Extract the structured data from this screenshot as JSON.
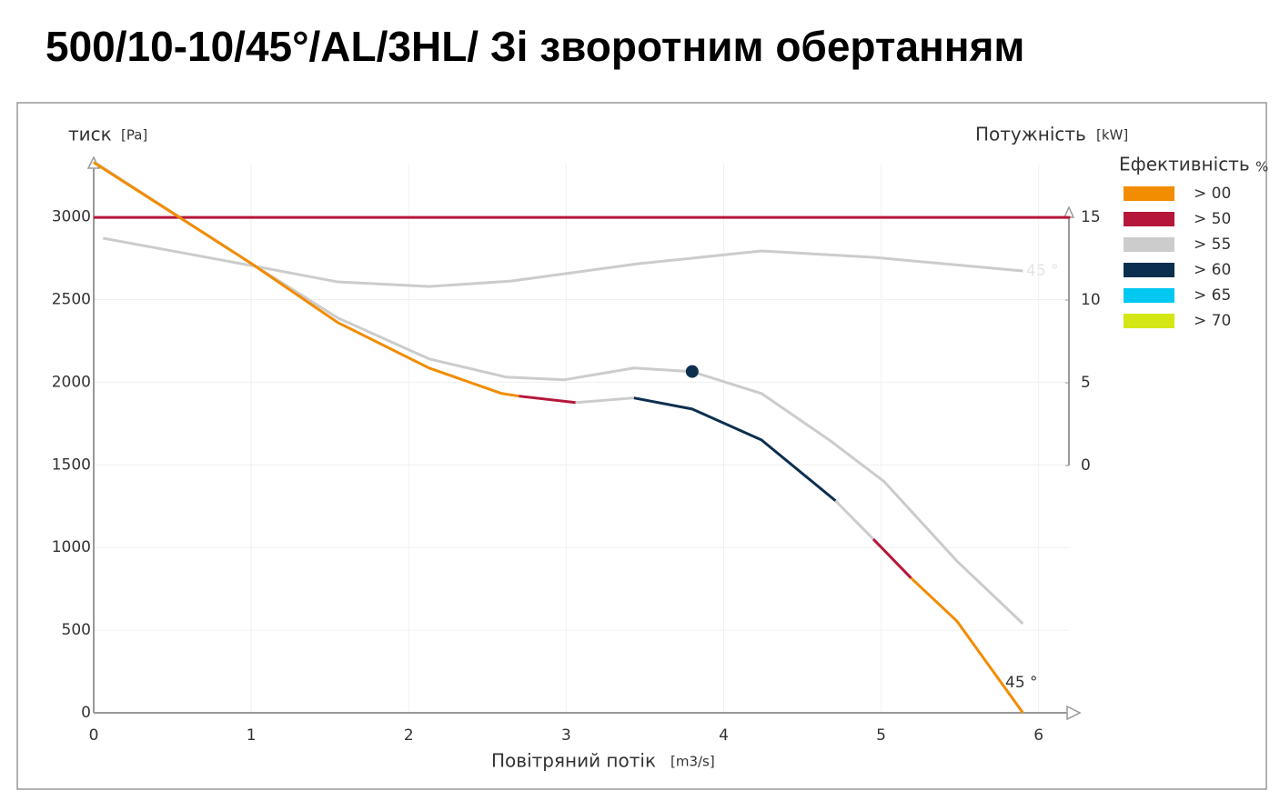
{
  "chart_data": {
    "type": "line",
    "title": "500/10-10/45°/AL/3HL/ Зі зворотним обертанням",
    "y_label": {
      "text": "тиск",
      "unit": "[Pa]"
    },
    "y2_label": {
      "text": "Потужність",
      "unit": "[kW]"
    },
    "x_label": {
      "text": "Повітряний потік",
      "unit": "[m3/s]"
    },
    "legend_title": {
      "text": "Ефективність",
      "unit": "%"
    },
    "legend": [
      {
        "label": "> 00",
        "color": "#f28c00"
      },
      {
        "label": "> 50",
        "color": "#b5173a"
      },
      {
        "label": "> 55",
        "color": "#cccccc"
      },
      {
        "label": "> 60",
        "color": "#0d2f4f"
      },
      {
        "label": "> 65",
        "color": "#00c8f0"
      },
      {
        "label": "> 70",
        "color": "#d4e614"
      }
    ],
    "xlim": [
      0,
      6.25
    ],
    "ylim": [
      0,
      3350
    ],
    "y2lim": [
      0,
      15.5
    ],
    "xticks": [
      0,
      1,
      2,
      3,
      4,
      5,
      6
    ],
    "yticks": [
      0,
      500,
      1000,
      1500,
      2000,
      2500,
      3000
    ],
    "y2ticks": [
      0,
      5,
      10,
      15
    ],
    "grid": true,
    "series": [
      {
        "color": "#cccccc",
        "x": [
          0,
          1,
          1.55,
          2.13,
          2.62,
          2.99,
          3.43,
          3.8,
          4.24,
          4.67,
          5.02,
          5.48,
          5.9
        ],
        "values": [
          3335,
          2719,
          2389,
          2141,
          2031,
          2015,
          2086,
          2064,
          1932,
          1651,
          1398,
          919,
          539
        ]
      },
      {
        "color": "#cccccc",
        "axis": "y2",
        "x": [
          0.06,
          1,
          1.55,
          2.13,
          2.65,
          3.46,
          4.24,
          4.96,
          5.9
        ],
        "values": [
          13.74,
          12.09,
          11.1,
          10.82,
          11.15,
          12.2,
          12.97,
          12.58,
          11.76
        ]
      },
      {
        "color": "#b5173a",
        "axis": "y2",
        "x": [
          0,
          6.2
        ],
        "values": [
          15,
          15
        ]
      },
      {
        "color": "#f28c00",
        "x": [
          0,
          1,
          1.55,
          2.13,
          2.59,
          2.7
        ],
        "values": [
          3330,
          2719,
          2361,
          2086,
          1932,
          1916
        ]
      },
      {
        "color": "#b5173a",
        "x": [
          2.7,
          3.06
        ],
        "values": [
          1916,
          1877
        ]
      },
      {
        "color": "#cccccc",
        "x": [
          3.06,
          3.43
        ],
        "values": [
          1877,
          1905
        ]
      },
      {
        "color": "#0d2f4f",
        "x": [
          3.43,
          3.8,
          4.24,
          4.71
        ],
        "values": [
          1905,
          1838,
          1651,
          1283
        ]
      },
      {
        "color": "#cccccc",
        "x": [
          4.71,
          4.95
        ],
        "values": [
          1283,
          1051
        ]
      },
      {
        "color": "#b5173a",
        "x": [
          4.95,
          5.19
        ],
        "values": [
          1051,
          815
        ]
      },
      {
        "color": "#f28c00",
        "x": [
          5.19,
          5.48,
          5.9
        ],
        "values": [
          815,
          556,
          0
        ]
      }
    ],
    "point": {
      "x": 3.8,
      "y": 2065,
      "color": "#0d2f4f"
    },
    "annotations": [
      "45 °",
      "45 °"
    ]
  }
}
